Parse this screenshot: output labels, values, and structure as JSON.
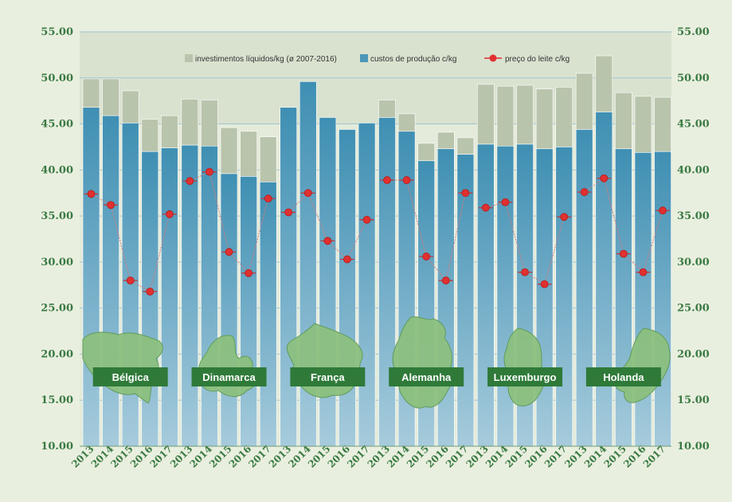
{
  "chart_data": {
    "type": "bar",
    "title": "",
    "ylim": [
      10,
      55
    ],
    "yticks": [
      "10.00",
      "15.00",
      "20.00",
      "25.00",
      "30.00",
      "35.00",
      "40.00",
      "45.00",
      "50.00",
      "55.00"
    ],
    "legend": [
      {
        "key": "investimentos",
        "label": "investimentos líquidos/kg (ø 2007-2016)",
        "color": "#b9c4ac"
      },
      {
        "key": "custos",
        "label": "custos de produção  c/kg",
        "color": "#4b97b8"
      },
      {
        "key": "preco",
        "label": "preço do leite c/kg",
        "color": "#e03030"
      }
    ],
    "years": [
      "2013",
      "2014",
      "2015",
      "2016",
      "2017"
    ],
    "countries": [
      {
        "name": "Bélgica",
        "custos": [
          46.8,
          45.9,
          45.1,
          42.0,
          42.4
        ],
        "total": [
          49.9,
          49.9,
          48.6,
          45.5,
          45.9
        ],
        "preco": [
          37.4,
          36.2,
          28.0,
          26.8,
          35.2
        ]
      },
      {
        "name": "Dinamarca",
        "custos": [
          42.7,
          42.6,
          39.6,
          39.3,
          38.7
        ],
        "total": [
          47.7,
          47.6,
          44.6,
          44.2,
          43.6
        ],
        "preco": [
          38.8,
          39.8,
          31.1,
          28.8,
          36.9
        ]
      },
      {
        "name": "França",
        "custos": [
          46.8,
          49.6,
          45.7,
          44.4,
          45.1
        ],
        "total": [
          46.8,
          49.6,
          45.7,
          44.4,
          45.1
        ],
        "preco": [
          35.4,
          37.5,
          32.3,
          30.3,
          34.6
        ]
      },
      {
        "name": "Alemanha",
        "custos": [
          45.7,
          44.2,
          41.0,
          42.3,
          41.7
        ],
        "total": [
          47.6,
          46.1,
          42.9,
          44.1,
          43.5
        ],
        "preco": [
          38.9,
          38.9,
          30.6,
          28.0,
          37.5
        ]
      },
      {
        "name": "Luxemburgo",
        "custos": [
          42.8,
          42.6,
          42.8,
          42.3,
          42.5
        ],
        "total": [
          49.3,
          49.1,
          49.2,
          48.8,
          49.0
        ],
        "preco": [
          35.9,
          36.5,
          28.9,
          27.6,
          34.9
        ]
      },
      {
        "name": "Holanda",
        "custos": [
          44.4,
          46.3,
          42.3,
          41.9,
          42.0
        ],
        "total": [
          50.5,
          52.4,
          48.4,
          48.0,
          47.9
        ],
        "preco": [
          37.6,
          39.1,
          30.9,
          28.9,
          35.6
        ]
      }
    ]
  }
}
